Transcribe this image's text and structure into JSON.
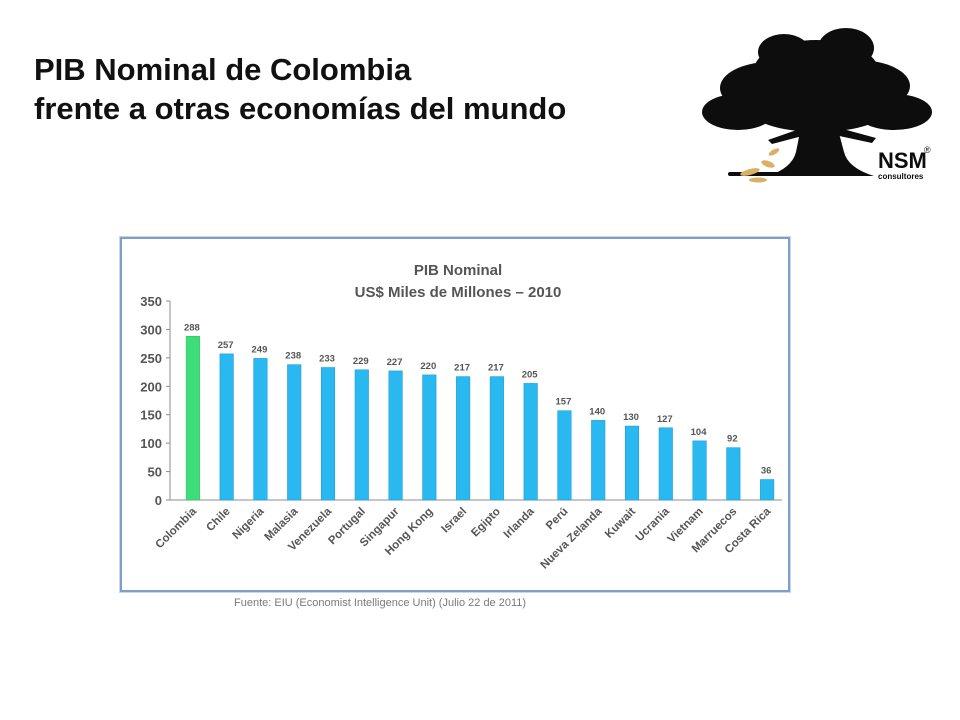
{
  "title": {
    "line1": "PIB Nominal de Colombia",
    "line2": "frente a otras economías del mundo"
  },
  "logo": {
    "name": "NSM",
    "registered": "®",
    "subtitle": "consultores"
  },
  "source": "Fuente: EIU (Economist Intelligence Unit) (Julio 22 de 2011)",
  "colors": {
    "highlight": "#3fdc7a",
    "bars": "#29b8ef",
    "bar_stroke": "#1d9fd4",
    "frame": "#7f9fc8",
    "text": "#555555"
  },
  "chart_data": {
    "type": "bar",
    "title": "PIB Nominal",
    "subtitle": "US$ Miles de Millones – 2010",
    "xlabel": "",
    "ylabel": "",
    "ylim": [
      0,
      350
    ],
    "yticks": [
      0,
      50,
      100,
      150,
      200,
      250,
      300,
      350
    ],
    "grid": false,
    "legend": "none",
    "categories": [
      "Colombia",
      "Chile",
      "Nigeria",
      "Malasia",
      "Venezuela",
      "Portugal",
      "Singapur",
      "Hong Kong",
      "Israel",
      "Egipto",
      "Irlanda",
      "Perú",
      "Nueva Zelanda",
      "Kuwait",
      "Ucrania",
      "Vietnam",
      "Marruecos",
      "Costa Rica"
    ],
    "values": [
      288,
      257,
      249,
      238,
      233,
      229,
      227,
      220,
      217,
      217,
      205,
      157,
      140,
      130,
      127,
      104,
      92,
      36
    ],
    "highlighted": "Colombia"
  }
}
